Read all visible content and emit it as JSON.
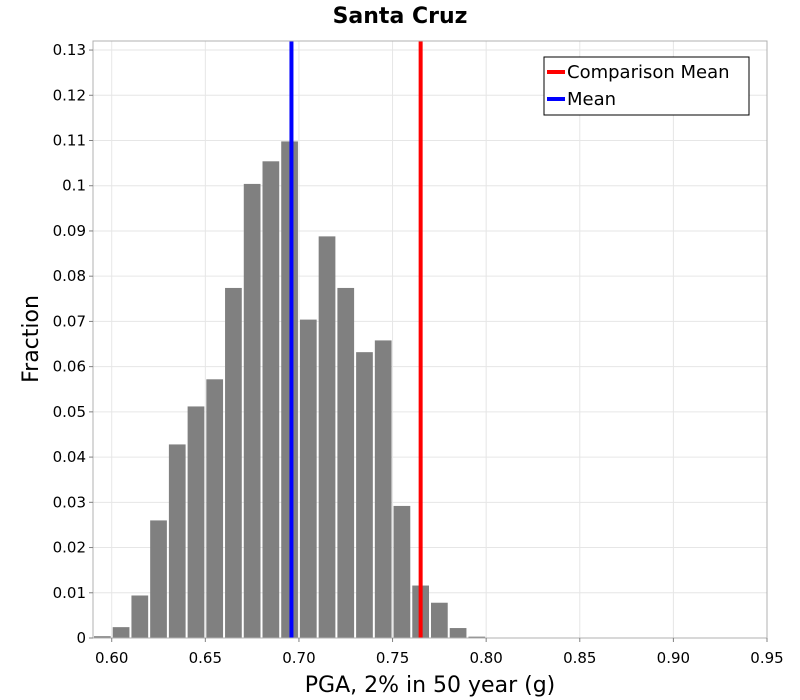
{
  "chart_data": {
    "type": "bar",
    "title": "Santa Cruz",
    "xlabel": "PGA, 2% in 50 year (g)",
    "ylabel": "Fraction",
    "xlim": [
      0.59,
      0.95
    ],
    "ylim": [
      0,
      0.132
    ],
    "grid": true,
    "legend_position": "top-right",
    "bar_color": "#808080",
    "bin_width": 0.01,
    "x": [
      0.595,
      0.605,
      0.615,
      0.625,
      0.635,
      0.645,
      0.655,
      0.665,
      0.675,
      0.685,
      0.695,
      0.705,
      0.715,
      0.725,
      0.735,
      0.745,
      0.755,
      0.765,
      0.775,
      0.785,
      0.795
    ],
    "values": [
      0.0004,
      0.0024,
      0.0094,
      0.026,
      0.0428,
      0.0512,
      0.0572,
      0.0774,
      0.1004,
      0.1054,
      0.1098,
      0.0704,
      0.0888,
      0.0774,
      0.0632,
      0.0658,
      0.0292,
      0.0116,
      0.0078,
      0.0022,
      0.0003
    ],
    "x_ticks": [
      "0.60",
      "0.65",
      "0.70",
      "0.75",
      "0.80",
      "0.85",
      "0.90",
      "0.95"
    ],
    "x_tick_values": [
      0.6,
      0.65,
      0.7,
      0.75,
      0.8,
      0.85,
      0.9,
      0.95
    ],
    "y_ticks": [
      "0",
      "0.01",
      "0.02",
      "0.03",
      "0.04",
      "0.05",
      "0.06",
      "0.07",
      "0.08",
      "0.09",
      "0.1",
      "0.11",
      "0.12",
      "0.13"
    ],
    "y_tick_values": [
      0,
      0.01,
      0.02,
      0.03,
      0.04,
      0.05,
      0.06,
      0.07,
      0.08,
      0.09,
      0.1,
      0.11,
      0.12,
      0.13
    ],
    "vlines": [
      {
        "name": "Comparison Mean",
        "x": 0.765,
        "color": "#ff0000"
      },
      {
        "name": "Mean",
        "x": 0.696,
        "color": "#0000ff"
      }
    ]
  }
}
